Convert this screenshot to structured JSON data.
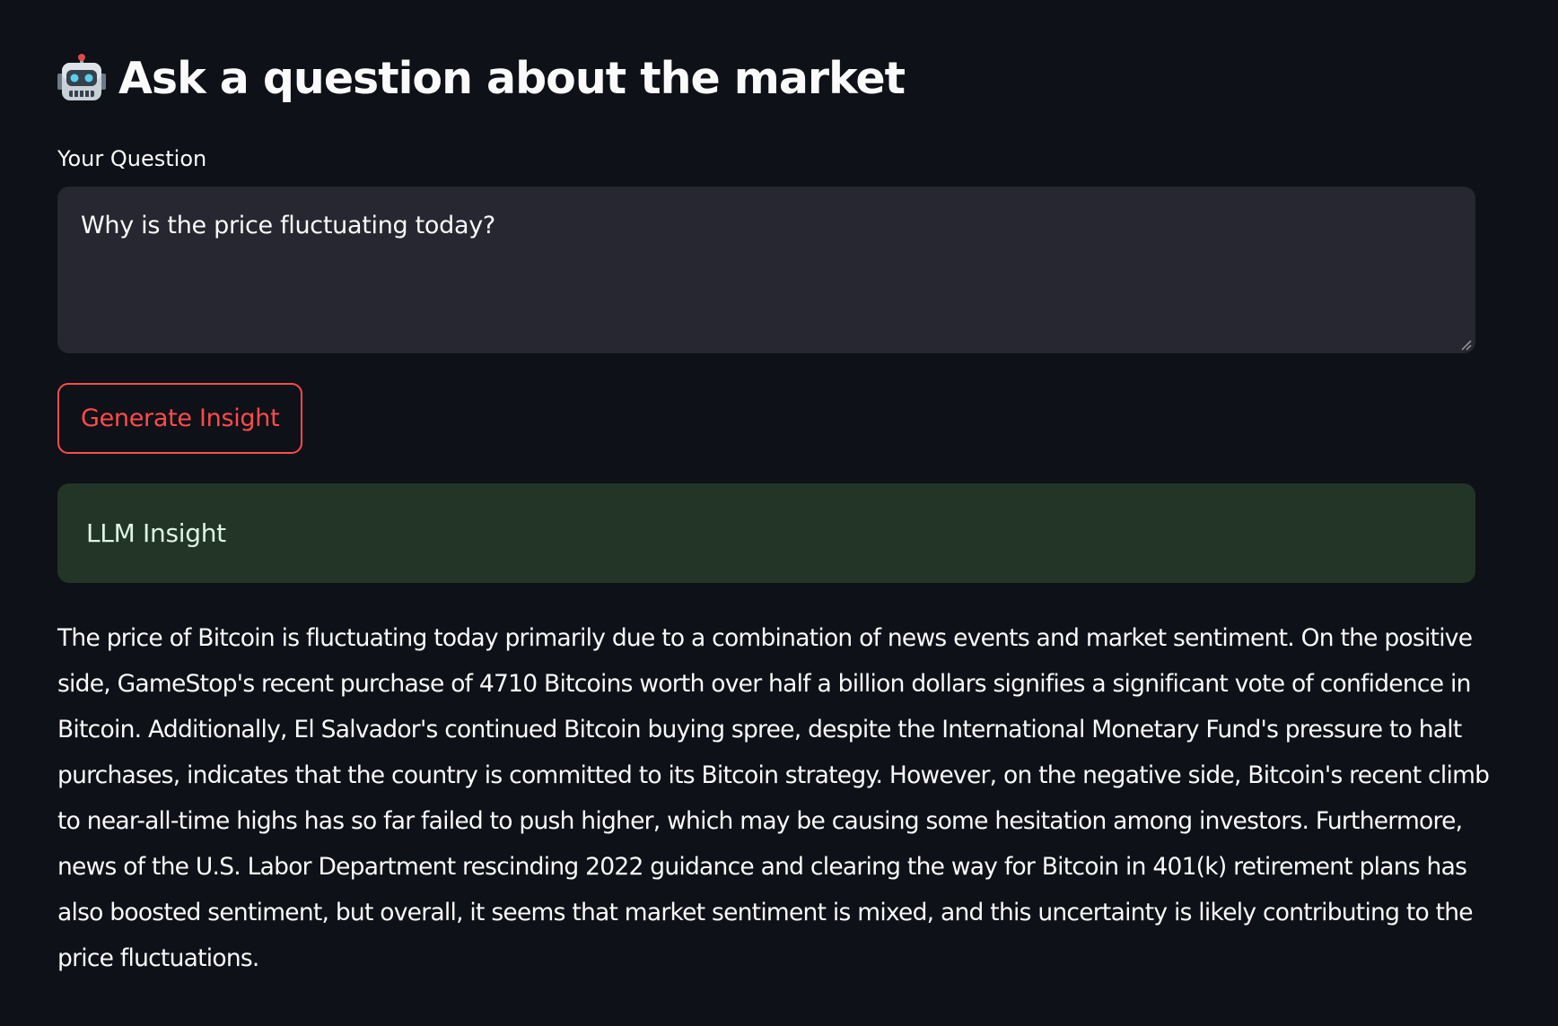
{
  "header": {
    "title": "Ask a question about the market",
    "icon": "robot-icon"
  },
  "question": {
    "label": "Your Question",
    "value": "Why is the price fluctuating today?"
  },
  "actions": {
    "generate_label": "Generate Insight"
  },
  "insight": {
    "title": "LLM Insight",
    "body": "The price of Bitcoin is fluctuating today primarily due to a combination of news events and market sentiment. On the positive side, GameStop's recent purchase of 4710 Bitcoins worth over half a billion dollars signifies a significant vote of confidence in Bitcoin. Additionally, El Salvador's continued Bitcoin buying spree, despite the International Monetary Fund's pressure to halt purchases, indicates that the country is committed to its Bitcoin strategy. However, on the negative side, Bitcoin's recent climb to near-all-time highs has so far failed to push higher, which may be causing some hesitation among investors. Furthermore, news of the U.S. Labor Department rescinding 2022 guidance and clearing the way for Bitcoin in 401(k) retirement plans has also boosted sentiment, but overall, it seems that market sentiment is mixed, and this uncertainty is likely contributing to the price fluctuations."
  },
  "colors": {
    "background": "#0e1117",
    "input_background": "#262730",
    "accent": "#ff4b4b",
    "success_background": "#223526",
    "text": "#fafafa"
  }
}
